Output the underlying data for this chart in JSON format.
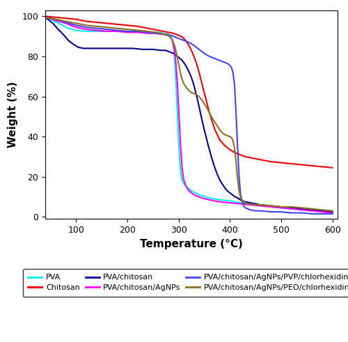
{
  "xlabel": "Temperature (°C)",
  "ylabel": "Weight (%)",
  "xlim": [
    40,
    610
  ],
  "ylim": [
    -1,
    103
  ],
  "xticks": [
    100,
    200,
    300,
    400,
    500,
    600
  ],
  "yticks": [
    0,
    20,
    40,
    60,
    80,
    100
  ],
  "figsize": [
    5.0,
    4.91
  ],
  "dpi": 100,
  "series": [
    {
      "label": "PVA",
      "color": "#00EEEE",
      "linewidth": 1.5,
      "points": [
        [
          40,
          99.5
        ],
        [
          55,
          98.0
        ],
        [
          70,
          96.0
        ],
        [
          85,
          94.0
        ],
        [
          100,
          93.0
        ],
        [
          120,
          92.5
        ],
        [
          140,
          92.5
        ],
        [
          160,
          92.5
        ],
        [
          180,
          92.5
        ],
        [
          200,
          92.5
        ],
        [
          220,
          92.5
        ],
        [
          240,
          92.0
        ],
        [
          260,
          92.0
        ],
        [
          270,
          91.5
        ],
        [
          280,
          91.0
        ],
        [
          285,
          90.0
        ],
        [
          288,
          88.0
        ],
        [
          291,
          83.0
        ],
        [
          294,
          72.0
        ],
        [
          297,
          55.0
        ],
        [
          300,
          38.0
        ],
        [
          303,
          25.0
        ],
        [
          306,
          19.0
        ],
        [
          310,
          16.5
        ],
        [
          315,
          15.0
        ],
        [
          325,
          13.0
        ],
        [
          340,
          11.0
        ],
        [
          360,
          9.5
        ],
        [
          380,
          8.5
        ],
        [
          400,
          8.0
        ],
        [
          420,
          7.0
        ],
        [
          440,
          6.5
        ],
        [
          460,
          5.5
        ],
        [
          480,
          5.0
        ],
        [
          500,
          4.5
        ],
        [
          520,
          4.0
        ],
        [
          540,
          3.5
        ],
        [
          560,
          3.0
        ],
        [
          580,
          2.5
        ],
        [
          600,
          2.0
        ]
      ]
    },
    {
      "label": "Chitosan",
      "color": "#EE0000",
      "linewidth": 1.5,
      "points": [
        [
          40,
          100.0
        ],
        [
          60,
          99.5
        ],
        [
          80,
          99.0
        ],
        [
          100,
          98.5
        ],
        [
          120,
          97.5
        ],
        [
          140,
          97.0
        ],
        [
          160,
          96.5
        ],
        [
          180,
          96.0
        ],
        [
          200,
          95.5
        ],
        [
          220,
          95.0
        ],
        [
          240,
          94.0
        ],
        [
          260,
          93.0
        ],
        [
          270,
          92.5
        ],
        [
          280,
          92.0
        ],
        [
          290,
          91.5
        ],
        [
          295,
          91.0
        ],
        [
          300,
          90.5
        ],
        [
          305,
          90.0
        ],
        [
          310,
          89.0
        ],
        [
          315,
          87.5
        ],
        [
          320,
          85.5
        ],
        [
          325,
          83.0
        ],
        [
          330,
          80.0
        ],
        [
          335,
          76.5
        ],
        [
          340,
          72.0
        ],
        [
          345,
          67.0
        ],
        [
          350,
          62.0
        ],
        [
          360,
          52.0
        ],
        [
          370,
          44.0
        ],
        [
          380,
          38.5
        ],
        [
          390,
          35.5
        ],
        [
          400,
          33.5
        ],
        [
          410,
          32.0
        ],
        [
          420,
          31.0
        ],
        [
          430,
          30.0
        ],
        [
          440,
          29.5
        ],
        [
          460,
          28.5
        ],
        [
          480,
          27.5
        ],
        [
          500,
          27.0
        ],
        [
          520,
          26.5
        ],
        [
          540,
          26.0
        ],
        [
          560,
          25.5
        ],
        [
          580,
          25.0
        ],
        [
          600,
          24.5
        ]
      ]
    },
    {
      "label": "PVA/chitosan",
      "color": "#00008B",
      "linewidth": 1.5,
      "points": [
        [
          40,
          99.5
        ],
        [
          55,
          96.5
        ],
        [
          65,
          93.5
        ],
        [
          75,
          91.0
        ],
        [
          85,
          88.0
        ],
        [
          95,
          86.0
        ],
        [
          105,
          84.5
        ],
        [
          115,
          84.0
        ],
        [
          130,
          84.0
        ],
        [
          150,
          84.0
        ],
        [
          170,
          84.0
        ],
        [
          190,
          84.0
        ],
        [
          210,
          84.0
        ],
        [
          230,
          83.5
        ],
        [
          250,
          83.5
        ],
        [
          265,
          83.0
        ],
        [
          275,
          83.0
        ],
        [
          280,
          82.5
        ],
        [
          285,
          82.0
        ],
        [
          290,
          81.5
        ],
        [
          295,
          80.5
        ],
        [
          300,
          79.5
        ],
        [
          305,
          78.5
        ],
        [
          310,
          77.0
        ],
        [
          315,
          75.0
        ],
        [
          320,
          72.5
        ],
        [
          325,
          69.5
        ],
        [
          330,
          65.5
        ],
        [
          335,
          60.5
        ],
        [
          340,
          55.0
        ],
        [
          345,
          49.0
        ],
        [
          350,
          43.5
        ],
        [
          355,
          38.5
        ],
        [
          360,
          33.5
        ],
        [
          365,
          29.0
        ],
        [
          370,
          25.0
        ],
        [
          375,
          21.5
        ],
        [
          380,
          18.5
        ],
        [
          385,
          16.5
        ],
        [
          390,
          14.5
        ],
        [
          395,
          13.0
        ],
        [
          400,
          12.0
        ],
        [
          405,
          11.0
        ],
        [
          410,
          10.0
        ],
        [
          415,
          9.5
        ],
        [
          420,
          8.5
        ],
        [
          430,
          7.5
        ],
        [
          440,
          7.0
        ],
        [
          460,
          6.0
        ],
        [
          480,
          5.5
        ],
        [
          500,
          5.0
        ],
        [
          520,
          4.5
        ],
        [
          540,
          4.0
        ],
        [
          560,
          3.5
        ],
        [
          580,
          3.0
        ],
        [
          600,
          2.5
        ]
      ]
    },
    {
      "label": "PVA/chitosan/AgNPs",
      "color": "#FF00FF",
      "linewidth": 1.5,
      "points": [
        [
          40,
          99.5
        ],
        [
          60,
          98.0
        ],
        [
          80,
          96.5
        ],
        [
          100,
          94.5
        ],
        [
          120,
          93.5
        ],
        [
          140,
          93.0
        ],
        [
          160,
          92.5
        ],
        [
          180,
          92.5
        ],
        [
          200,
          92.0
        ],
        [
          220,
          92.0
        ],
        [
          240,
          91.5
        ],
        [
          255,
          91.5
        ],
        [
          265,
          91.0
        ],
        [
          272,
          91.0
        ],
        [
          278,
          90.5
        ],
        [
          282,
          90.0
        ],
        [
          286,
          89.0
        ],
        [
          289,
          87.0
        ],
        [
          292,
          83.0
        ],
        [
          295,
          76.0
        ],
        [
          298,
          65.0
        ],
        [
          301,
          50.0
        ],
        [
          304,
          35.0
        ],
        [
          307,
          24.0
        ],
        [
          310,
          18.5
        ],
        [
          315,
          15.0
        ],
        [
          320,
          13.0
        ],
        [
          330,
          11.0
        ],
        [
          345,
          9.5
        ],
        [
          360,
          8.5
        ],
        [
          380,
          7.5
        ],
        [
          400,
          7.0
        ],
        [
          420,
          6.5
        ],
        [
          440,
          6.0
        ],
        [
          460,
          5.5
        ],
        [
          480,
          5.0
        ],
        [
          500,
          4.5
        ],
        [
          520,
          4.0
        ],
        [
          540,
          3.5
        ],
        [
          560,
          3.0
        ],
        [
          580,
          2.5
        ],
        [
          600,
          2.0
        ]
      ]
    },
    {
      "label": "PVA/chitosan/AgNPs/PVP/chlorhexidine",
      "color": "#4444EE",
      "linewidth": 1.5,
      "points": [
        [
          40,
          99.5
        ],
        [
          60,
          98.5
        ],
        [
          80,
          97.0
        ],
        [
          100,
          95.5
        ],
        [
          120,
          94.5
        ],
        [
          140,
          94.0
        ],
        [
          160,
          93.5
        ],
        [
          180,
          93.0
        ],
        [
          200,
          92.5
        ],
        [
          220,
          92.5
        ],
        [
          240,
          92.0
        ],
        [
          255,
          91.5
        ],
        [
          265,
          91.5
        ],
        [
          272,
          91.0
        ],
        [
          278,
          91.0
        ],
        [
          282,
          90.5
        ],
        [
          286,
          90.5
        ],
        [
          290,
          90.0
        ],
        [
          295,
          89.5
        ],
        [
          300,
          89.0
        ],
        [
          305,
          88.5
        ],
        [
          310,
          88.0
        ],
        [
          320,
          87.0
        ],
        [
          330,
          85.5
        ],
        [
          340,
          83.5
        ],
        [
          350,
          81.5
        ],
        [
          360,
          80.0
        ],
        [
          370,
          79.0
        ],
        [
          375,
          78.5
        ],
        [
          380,
          78.0
        ],
        [
          385,
          77.5
        ],
        [
          390,
          77.0
        ],
        [
          395,
          76.5
        ],
        [
          400,
          75.5
        ],
        [
          403,
          74.5
        ],
        [
          406,
          72.0
        ],
        [
          409,
          66.0
        ],
        [
          412,
          52.0
        ],
        [
          415,
          35.0
        ],
        [
          418,
          20.0
        ],
        [
          421,
          11.0
        ],
        [
          424,
          7.5
        ],
        [
          427,
          5.5
        ],
        [
          430,
          4.5
        ],
        [
          435,
          4.0
        ],
        [
          440,
          3.5
        ],
        [
          450,
          3.0
        ],
        [
          460,
          3.0
        ],
        [
          480,
          2.5
        ],
        [
          500,
          2.5
        ],
        [
          520,
          2.0
        ],
        [
          540,
          2.0
        ],
        [
          560,
          1.5
        ],
        [
          580,
          1.5
        ],
        [
          600,
          1.5
        ]
      ]
    },
    {
      "label": "PVA/chitosan/AgNPs/PEO/chlorhexidine",
      "color": "#8B7020",
      "linewidth": 1.5,
      "points": [
        [
          40,
          99.5
        ],
        [
          60,
          98.5
        ],
        [
          80,
          97.5
        ],
        [
          100,
          96.5
        ],
        [
          120,
          95.5
        ],
        [
          140,
          95.0
        ],
        [
          160,
          94.5
        ],
        [
          180,
          94.0
        ],
        [
          200,
          93.5
        ],
        [
          220,
          93.0
        ],
        [
          240,
          92.5
        ],
        [
          255,
          92.0
        ],
        [
          265,
          91.5
        ],
        [
          272,
          91.0
        ],
        [
          278,
          90.5
        ],
        [
          282,
          90.0
        ],
        [
          286,
          89.0
        ],
        [
          289,
          87.5
        ],
        [
          292,
          85.5
        ],
        [
          295,
          82.5
        ],
        [
          298,
          79.0
        ],
        [
          301,
          75.0
        ],
        [
          304,
          71.5
        ],
        [
          307,
          68.5
        ],
        [
          310,
          66.5
        ],
        [
          315,
          64.5
        ],
        [
          320,
          63.0
        ],
        [
          325,
          62.0
        ],
        [
          330,
          61.5
        ],
        [
          335,
          61.0
        ],
        [
          340,
          60.0
        ],
        [
          345,
          58.5
        ],
        [
          350,
          56.5
        ],
        [
          355,
          54.5
        ],
        [
          360,
          52.0
        ],
        [
          365,
          49.5
        ],
        [
          370,
          47.5
        ],
        [
          375,
          45.5
        ],
        [
          380,
          43.5
        ],
        [
          385,
          42.0
        ],
        [
          390,
          41.0
        ],
        [
          395,
          40.5
        ],
        [
          400,
          40.0
        ],
        [
          403,
          39.5
        ],
        [
          406,
          38.0
        ],
        [
          409,
          34.5
        ],
        [
          412,
          27.5
        ],
        [
          415,
          19.0
        ],
        [
          418,
          13.0
        ],
        [
          421,
          9.5
        ],
        [
          424,
          8.0
        ],
        [
          427,
          7.5
        ],
        [
          430,
          7.0
        ],
        [
          435,
          6.5
        ],
        [
          440,
          6.5
        ],
        [
          450,
          6.0
        ],
        [
          460,
          6.0
        ],
        [
          480,
          5.5
        ],
        [
          500,
          5.0
        ],
        [
          520,
          5.0
        ],
        [
          540,
          4.5
        ],
        [
          560,
          4.0
        ],
        [
          580,
          3.5
        ],
        [
          600,
          3.0
        ]
      ]
    }
  ],
  "legend_labels": [
    "PVA",
    "Chitosan",
    "PVA/chitosan",
    "PVA/chitosan/AgNPs",
    "PVA/chitosan/AgNPs/PVP/chlorhexidine",
    "PVA/chitosan/AgNPs/PEO/chlorhexidine"
  ],
  "legend_colors": [
    "#00EEEE",
    "#EE0000",
    "#00008B",
    "#FF00FF",
    "#4444EE",
    "#8B7020"
  ],
  "legend_fontsize": 8.0
}
